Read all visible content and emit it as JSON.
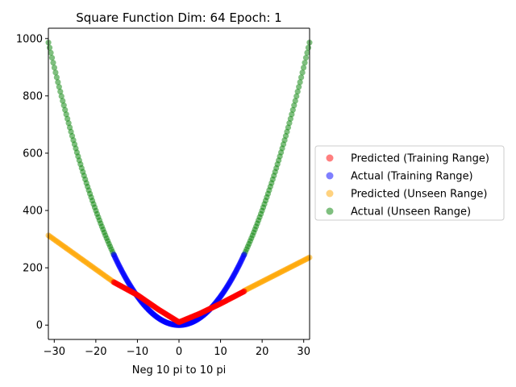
{
  "chart_data": {
    "type": "scatter",
    "title": "Square Function Dim: 64 Epoch: 1",
    "xlabel": "Neg 10 pi to 10 pi",
    "ylabel": "",
    "xlim": [
      -31.4159,
      31.4159
    ],
    "ylim": [
      -50,
      1036
    ],
    "x_ticks": [
      -30,
      -20,
      -10,
      0,
      10,
      20,
      30
    ],
    "x_tick_labels": [
      "−30",
      "−20",
      "−10",
      "0",
      "10",
      "20",
      "30"
    ],
    "y_ticks": [
      0,
      200,
      400,
      600,
      800,
      1000
    ],
    "y_tick_labels": [
      "0",
      "200",
      "400",
      "600",
      "800",
      "1000"
    ],
    "grid": false,
    "legend_position": "right",
    "marker_alpha": 0.5,
    "series": [
      {
        "name": "Predicted (Training Range)",
        "color": "#ff0000",
        "function": "linear segments",
        "x_range": [
          -15.7,
          15.7
        ],
        "points": [
          [
            -15.7,
            150
          ],
          [
            -10,
            105
          ],
          [
            -5,
            55
          ],
          [
            0,
            10
          ],
          [
            5,
            40
          ],
          [
            10,
            75
          ],
          [
            15.7,
            118
          ]
        ]
      },
      {
        "name": "Actual (Training Range)",
        "color": "#0000ff",
        "function": "x^2",
        "x_range": [
          -15.7,
          15.7
        ],
        "points": [
          [
            -15.7,
            246.5
          ],
          [
            -10,
            100
          ],
          [
            -5,
            25
          ],
          [
            0,
            0
          ],
          [
            5,
            25
          ],
          [
            10,
            100
          ],
          [
            15.7,
            246.5
          ]
        ]
      },
      {
        "name": "Predicted (Unseen Range)",
        "color": "#ffa500",
        "function": "linear segments",
        "x_range": [
          -31.4,
          31.4
        ],
        "points": [
          [
            -31.4,
            313
          ],
          [
            -15.7,
            150
          ],
          [
            15.7,
            120
          ],
          [
            31.4,
            236
          ]
        ]
      },
      {
        "name": "Actual (Unseen Range)",
        "color": "#008000",
        "function": "x^2",
        "x_range": [
          -31.4,
          31.4
        ],
        "points": [
          [
            -31.4,
            986
          ],
          [
            -25,
            625
          ],
          [
            -20,
            400
          ],
          [
            -15.7,
            246.5
          ],
          [
            15.7,
            246.5
          ],
          [
            20,
            400
          ],
          [
            25,
            625
          ],
          [
            31.4,
            986
          ]
        ]
      }
    ]
  }
}
